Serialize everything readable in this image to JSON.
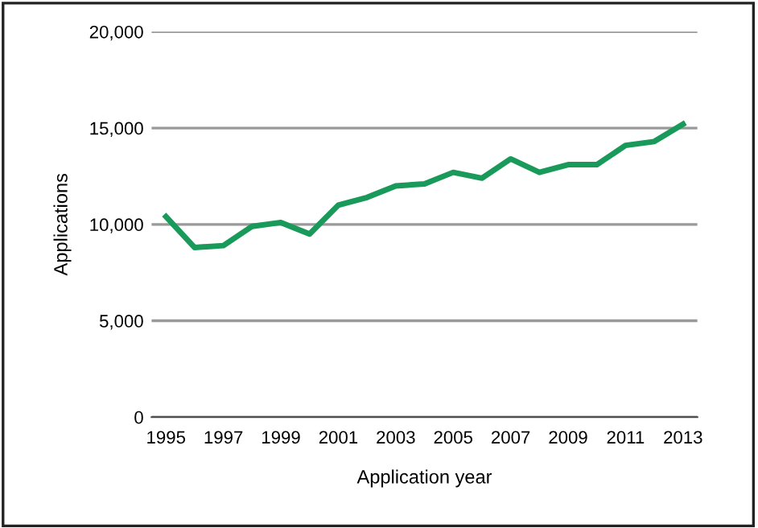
{
  "chart_data": {
    "type": "line",
    "xlabel": "Application year",
    "ylabel": "Applications",
    "x": [
      1995,
      1996,
      1997,
      1998,
      1999,
      2000,
      2001,
      2002,
      2003,
      2004,
      2005,
      2006,
      2007,
      2008,
      2009,
      2010,
      2011,
      2012,
      2013
    ],
    "series": [
      {
        "color": "#1a9a5a",
        "values": [
          10400,
          8800,
          8900,
          9900,
          10100,
          9500,
          11000,
          11400,
          12000,
          12100,
          12700,
          12400,
          13400,
          12700,
          13100,
          13100,
          14100,
          14300,
          15200
        ]
      }
    ],
    "xlim": [
      1994.5,
      2013.5
    ],
    "xticks": [
      1995,
      1997,
      1999,
      2001,
      2003,
      2005,
      2007,
      2009,
      2011,
      2013
    ],
    "ylim": [
      0,
      20000
    ],
    "yticks": [
      {
        "value": 0,
        "label": "0"
      },
      {
        "value": 5000,
        "label": "5,000"
      },
      {
        "value": 10000,
        "label": "10,000"
      },
      {
        "value": 15000,
        "label": "15,000"
      },
      {
        "value": 20000,
        "label": "20,000"
      }
    ],
    "grid": "y",
    "marker": "none",
    "line_style": "solid"
  }
}
